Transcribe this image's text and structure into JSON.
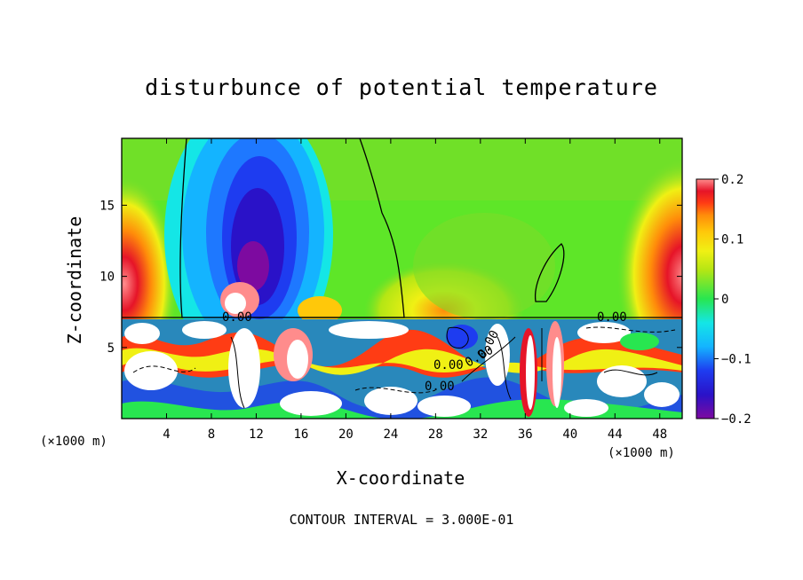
{
  "chart_data": {
    "type": "heatmap",
    "title": "disturbunce of potential temperature",
    "xlabel": "X-coordinate",
    "ylabel": "Z-coordinate",
    "x_unit_note": "(×1000 m)",
    "x_ticks": [
      "4",
      "8",
      "12",
      "16",
      "20",
      "24",
      "28",
      "32",
      "36",
      "40",
      "44",
      "48"
    ],
    "x_tick_values": [
      4,
      8,
      12,
      16,
      20,
      24,
      28,
      32,
      36,
      40,
      44,
      48
    ],
    "y_ticks": [
      "5",
      "10",
      "15"
    ],
    "y_tick_values": [
      5,
      10,
      15
    ],
    "xlim": [
      0,
      50
    ],
    "ylim": [
      0,
      19.7
    ],
    "colorbar": {
      "range": [
        -0.2,
        0.2
      ],
      "tick_labels": [
        "0.2",
        "0.1",
        "0",
        "−0.1",
        "−0.2"
      ],
      "tick_values": [
        0.2,
        0.1,
        0,
        -0.1,
        -0.2
      ],
      "colors": [
        "#7d0aa0",
        "#2a12c8",
        "#1e3cf0",
        "#1e78ff",
        "#14b4ff",
        "#14e6e6",
        "#1ef0a0",
        "#28e650",
        "#7ddc28",
        "#b4e614",
        "#f0f014",
        "#ffc80a",
        "#ff8c0a",
        "#ff3c14",
        "#e61428",
        "#ff8c8c"
      ]
    },
    "contour_labels": [
      "0.00",
      "0.00",
      "0.00",
      "0.00",
      "0.00",
      "0.00"
    ],
    "contour_interval_text": "CONTOUR INTERVAL = 3.000E-01"
  }
}
